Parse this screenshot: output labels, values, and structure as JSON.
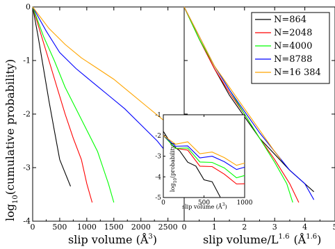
{
  "chart_data": [
    {
      "type": "line",
      "panel": "left",
      "xlabel": "slip volume (Å³)",
      "ylabel": "log10(cumulative probability)",
      "xlim": [
        0,
        2800
      ],
      "ylim": [
        -4,
        0
      ],
      "xticks": [
        "0",
        "500",
        "1000",
        "1500",
        "2000",
        "2500"
      ],
      "yticks": [
        "0",
        "-1",
        "-2",
        "-3",
        "-4"
      ],
      "series": [
        {
          "name": "N=864",
          "color": "#000000",
          "x": [
            0,
            100,
            200,
            300,
            400,
            500,
            600,
            700
          ],
          "y": [
            0,
            -0.55,
            -1.15,
            -1.75,
            -2.3,
            -2.85,
            -3.1,
            -3.35
          ]
        },
        {
          "name": "N=2048",
          "color": "#ff0000",
          "x": [
            0,
            150,
            300,
            450,
            600,
            750,
            900,
            1000,
            1100
          ],
          "y": [
            0,
            -0.5,
            -1.0,
            -1.5,
            -2.0,
            -2.45,
            -2.85,
            -3.3,
            -3.65
          ]
        },
        {
          "name": "N=4000",
          "color": "#00ff00",
          "x": [
            0,
            200,
            400,
            600,
            800,
            1000,
            1200,
            1300,
            1400,
            1500
          ],
          "y": [
            0,
            -0.55,
            -1.0,
            -1.5,
            -1.9,
            -2.3,
            -2.7,
            -3.0,
            -3.3,
            -3.65
          ]
        },
        {
          "name": "N=8788",
          "color": "#0000ff",
          "x": [
            0,
            250,
            500,
            800,
            1100,
            1400,
            1700,
            2000,
            2300,
            2500,
            2700
          ],
          "y": [
            0,
            -0.45,
            -0.85,
            -1.15,
            -1.4,
            -1.65,
            -1.9,
            -2.2,
            -2.5,
            -2.75,
            -3.0
          ]
        },
        {
          "name": "N=16 384",
          "color": "#ffa500",
          "x": [
            0,
            300,
            600,
            900,
            1200,
            1500,
            1800,
            2100,
            2400,
            2700
          ],
          "y": [
            0,
            -0.4,
            -0.7,
            -0.95,
            -1.15,
            -1.35,
            -1.6,
            -1.85,
            -2.1,
            -2.35
          ]
        }
      ]
    },
    {
      "type": "line",
      "panel": "right",
      "xlabel": "slip volume/L",
      "xlabel_sup": "1.6",
      "xlabel_unit": "(Å",
      "xlabel_unit_sup": "1.6",
      "xlabel_close": ")",
      "xlim": [
        0,
        5
      ],
      "ylim": [
        -4,
        0
      ],
      "xticks": [
        "0",
        "1",
        "2",
        "3",
        "4",
        "5"
      ],
      "legend_position": "top-right",
      "series": [
        {
          "name": "N=864",
          "color": "#000000",
          "x": [
            0,
            0.5,
            1.0,
            1.5,
            2.0,
            2.5,
            3.0,
            3.5,
            4.0,
            4.3
          ],
          "y": [
            0,
            -0.6,
            -1.15,
            -1.65,
            -2.05,
            -2.45,
            -2.75,
            -3.05,
            -3.3,
            -3.45
          ]
        },
        {
          "name": "N=2048",
          "color": "#ff0000",
          "x": [
            0,
            0.5,
            1.0,
            1.5,
            2.0,
            2.5,
            3.0,
            3.5,
            3.8
          ],
          "y": [
            0,
            -0.6,
            -1.15,
            -1.6,
            -2.0,
            -2.45,
            -2.85,
            -3.3,
            -3.65
          ]
        },
        {
          "name": "N=4000",
          "color": "#00ff00",
          "x": [
            0,
            0.5,
            1.0,
            1.5,
            2.0,
            2.5,
            3.0,
            3.4,
            3.6
          ],
          "y": [
            0,
            -0.6,
            -1.1,
            -1.55,
            -2.0,
            -2.45,
            -2.9,
            -3.3,
            -3.65
          ]
        },
        {
          "name": "N=8788",
          "color": "#0000ff",
          "x": [
            0,
            0.5,
            1.0,
            1.5,
            2.0,
            2.5,
            3.0,
            3.5,
            4.0,
            4.3
          ],
          "y": [
            0,
            -0.55,
            -1.1,
            -1.55,
            -1.95,
            -2.35,
            -2.7,
            -3.05,
            -3.3,
            -3.6
          ]
        },
        {
          "name": "N=16 384",
          "color": "#ffa500",
          "x": [
            0,
            0.5,
            1.0,
            1.5,
            2.0,
            2.5,
            3.0,
            3.2
          ],
          "y": [
            0,
            -0.55,
            -1.1,
            -1.5,
            -1.9,
            -2.3,
            -2.7,
            -2.85
          ]
        }
      ]
    },
    {
      "type": "line",
      "panel": "inset",
      "xlabel": "slip volume (Å³)",
      "ylabel": "log10(probability)",
      "xlim": [
        0,
        1000
      ],
      "ylim": [
        -5,
        -1
      ],
      "xticks": [
        "0",
        "500",
        "1000"
      ],
      "yticks": [
        "-1",
        "-2",
        "-3",
        "-4",
        "-5"
      ],
      "series": [
        {
          "name": "N=864",
          "color": "#000000",
          "x": [
            0,
            100,
            200,
            300,
            400,
            500,
            600,
            700
          ],
          "y": [
            -1.8,
            -2.4,
            -2.8,
            -3.2,
            -3.6,
            -4.0,
            -4.4,
            -4.8
          ]
        },
        {
          "name": "N=2048",
          "color": "#ff0000",
          "x": [
            0,
            150,
            300,
            450,
            600,
            750,
            900,
            1000
          ],
          "y": [
            -2.0,
            -2.5,
            -2.9,
            -3.3,
            -3.6,
            -3.9,
            -4.2,
            -4.5
          ]
        },
        {
          "name": "N=4000",
          "color": "#00ff00",
          "x": [
            0,
            150,
            300,
            450,
            600,
            750,
            900,
            1000
          ],
          "y": [
            -2.0,
            -2.5,
            -2.8,
            -3.1,
            -3.4,
            -3.6,
            -3.9,
            -4.1
          ]
        },
        {
          "name": "N=8788",
          "color": "#0000ff",
          "x": [
            0,
            150,
            300,
            450,
            600,
            750,
            900,
            1000
          ],
          "y": [
            -2.0,
            -2.4,
            -2.7,
            -2.9,
            -3.1,
            -3.3,
            -3.5,
            -3.7
          ]
        },
        {
          "name": "N=16 384",
          "color": "#ffa500",
          "x": [
            0,
            150,
            300,
            450,
            600,
            750,
            900,
            1000
          ],
          "y": [
            -2.0,
            -2.3,
            -2.5,
            -2.7,
            -2.9,
            -3.1,
            -3.3,
            -3.5
          ]
        }
      ]
    }
  ],
  "labels": {
    "left_xlabel_text": "slip volume (Å",
    "left_xlabel_sup": "3",
    "left_xlabel_close": ")",
    "ylabel_prefix": "log",
    "ylabel_sub": "10",
    "ylabel_text": "(cumulative probability)",
    "inset_ylabel_prefix": "log",
    "inset_ylabel_sub": "10",
    "inset_ylabel_text": "(probability)",
    "inset_xlabel_text": "slip volume (Å",
    "inset_xlabel_sup": "3",
    "inset_xlabel_close": ")"
  }
}
